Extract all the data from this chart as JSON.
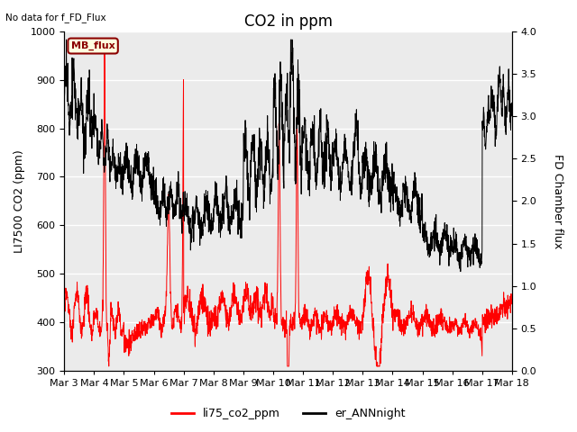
{
  "title": "CO2 in ppm",
  "no_data_text": "No data for f_FD_Flux",
  "mb_flux_label": "MB_flux",
  "ylabel_left": "LI7500 CO2 (ppm)",
  "ylabel_right": "FD Chamber flux",
  "ylim_left": [
    300,
    1000
  ],
  "ylim_right": [
    0.0,
    4.0
  ],
  "xtick_labels": [
    "Mar 3",
    "Mar 4",
    "Mar 5",
    "Mar 6",
    "Mar 7",
    "Mar 8",
    "Mar 9",
    "Mar 10",
    "Mar 11",
    "Mar 12",
    "Mar 13",
    "Mar 14",
    "Mar 15",
    "Mar 16",
    "Mar 17",
    "Mar 18"
  ],
  "legend_labels": [
    "li75_co2_ppm",
    "er_ANNnight"
  ],
  "line_colors": [
    "red",
    "black"
  ],
  "plot_bg_color": "#ebebeb",
  "upper_shade_color": "#d8d8d8",
  "title_fontsize": 12,
  "label_fontsize": 9,
  "tick_fontsize": 8
}
